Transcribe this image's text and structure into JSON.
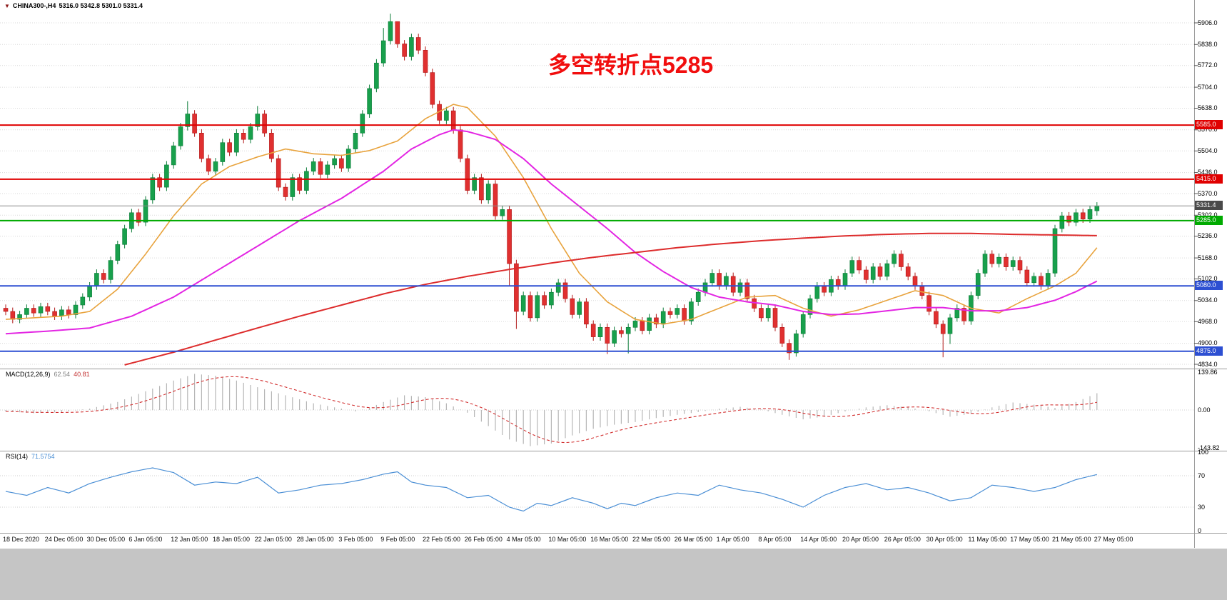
{
  "header": {
    "triangle": "▼",
    "symbol": "CHINA300-,H4",
    "ohlc": "5316.0 5342.8 5301.0 5331.4"
  },
  "annotation": {
    "text": "多空转折点5285",
    "color": "#f10e0e"
  },
  "chart_data": {
    "type": "candlestick",
    "symbol": "CHINA300-",
    "timeframe": "H4",
    "ohlc_display": "5316.0 5342.8 5301.0 5331.4",
    "y_axis": {
      "labels": [
        "5906.0",
        "5838.0",
        "5772.0",
        "5704.0",
        "5638.0",
        "5570.0",
        "5504.0",
        "5436.0",
        "5370.0",
        "5302.0",
        "5236.0",
        "5168.0",
        "5102.0",
        "5034.0",
        "4968.0",
        "4900.0",
        "4834.0"
      ]
    },
    "x_axis": {
      "labels": [
        "18 Dec 2020",
        "24 Dec 05:00",
        "30 Dec 05:00",
        "6 Jan 05:00",
        "12 Jan 05:00",
        "18 Jan 05:00",
        "22 Jan 05:00",
        "28 Jan 05:00",
        "3 Feb 05:00",
        "9 Feb 05:00",
        "22 Feb 05:00",
        "26 Feb 05:00",
        "4 Mar 05:00",
        "10 Mar 05:00",
        "16 Mar 05:00",
        "22 Mar 05:00",
        "26 Mar 05:00",
        "1 Apr 05:00",
        "8 Apr 05:00",
        "14 Apr 05:00",
        "20 Apr 05:00",
        "26 Apr 05:00",
        "30 Apr 05:00",
        "11 May 05:00",
        "17 May 05:00",
        "21 May 05:00",
        "27 May 05:00"
      ]
    },
    "candles": {
      "first_open": 5010,
      "wick": 12,
      "closes": [
        5000,
        4975,
        4990,
        5010,
        4995,
        5015,
        5000,
        4985,
        5005,
        4990,
        5020,
        5045,
        5080,
        5120,
        5100,
        5160,
        5210,
        5260,
        5310,
        5280,
        5350,
        5420,
        5390,
        5460,
        5520,
        5580,
        5620,
        5560,
        5480,
        5440,
        5470,
        5530,
        5500,
        5560,
        5540,
        5580,
        5620,
        5560,
        5480,
        5390,
        5360,
        5420,
        5380,
        5440,
        5470,
        5430,
        5460,
        5480,
        5450,
        5510,
        5560,
        5620,
        5700,
        5780,
        5850,
        5910,
        5840,
        5800,
        5860,
        5820,
        5750,
        5650,
        5600,
        5630,
        5570,
        5480,
        5380,
        5420,
        5350,
        5400,
        5300,
        5320,
        5150,
        5000,
        5050,
        4980,
        5050,
        5020,
        5060,
        5090,
        5040,
        4990,
        5030,
        4960,
        4920,
        4950,
        4900,
        4940,
        4930,
        4950,
        4970,
        4940,
        4980,
        4960,
        5000,
        4990,
        5010,
        4970,
        5030,
        5060,
        5090,
        5120,
        5080,
        5110,
        5060,
        5090,
        5040,
        5010,
        4980,
        5010,
        4950,
        4900,
        4870,
        4930,
        4990,
        5040,
        5080,
        5060,
        5100,
        5080,
        5120,
        5160,
        5130,
        5100,
        5140,
        5110,
        5150,
        5180,
        5140,
        5110,
        5080,
        5050,
        5000,
        4960,
        4930,
        4980,
        5010,
        4970,
        5050,
        5120,
        5180,
        5150,
        5170,
        5140,
        5160,
        5130,
        5090,
        5110,
        5080,
        5120,
        5260,
        5300,
        5280,
        5310,
        5290,
        5320,
        5331.4
      ],
      "high_overrides": {
        "26": 5660,
        "36": 5645,
        "54": 5890,
        "55": 5935,
        "56": 5900
      },
      "low_overrides": {
        "72": 5080,
        "73": 4945,
        "86": 4866,
        "89": 4868,
        "112": 4848,
        "113": 4858,
        "134": 4856,
        "135": 4898
      },
      "last_candle": {
        "o": 5316.0,
        "h": 5342.8,
        "l": 5301.0,
        "c": 5331.4
      }
    },
    "moving_averages": [
      {
        "name": "fast-ma",
        "color": "#e8a33d",
        "width": 1.6,
        "points": [
          [
            0,
            4975
          ],
          [
            8,
            4985
          ],
          [
            12,
            5000
          ],
          [
            16,
            5070
          ],
          [
            20,
            5180
          ],
          [
            24,
            5300
          ],
          [
            28,
            5400
          ],
          [
            32,
            5455
          ],
          [
            36,
            5485
          ],
          [
            40,
            5510
          ],
          [
            44,
            5495
          ],
          [
            48,
            5490
          ],
          [
            52,
            5505
          ],
          [
            56,
            5535
          ],
          [
            60,
            5605
          ],
          [
            64,
            5650
          ],
          [
            66,
            5640
          ],
          [
            70,
            5550
          ],
          [
            74,
            5420
          ],
          [
            78,
            5260
          ],
          [
            82,
            5120
          ],
          [
            86,
            5030
          ],
          [
            90,
            4975
          ],
          [
            94,
            4960
          ],
          [
            98,
            4975
          ],
          [
            102,
            5010
          ],
          [
            106,
            5045
          ],
          [
            110,
            5050
          ],
          [
            114,
            5010
          ],
          [
            118,
            4985
          ],
          [
            122,
            5005
          ],
          [
            126,
            5035
          ],
          [
            130,
            5065
          ],
          [
            134,
            5050
          ],
          [
            138,
            5010
          ],
          [
            142,
            4995
          ],
          [
            146,
            5040
          ],
          [
            150,
            5080
          ],
          [
            153,
            5120
          ],
          [
            156,
            5200
          ]
        ]
      },
      {
        "name": "mid-ma",
        "color": "#e326e3",
        "width": 2,
        "points": [
          [
            0,
            4930
          ],
          [
            6,
            4938
          ],
          [
            12,
            4948
          ],
          [
            18,
            4985
          ],
          [
            24,
            5045
          ],
          [
            30,
            5125
          ],
          [
            36,
            5205
          ],
          [
            42,
            5285
          ],
          [
            48,
            5355
          ],
          [
            54,
            5440
          ],
          [
            58,
            5510
          ],
          [
            62,
            5555
          ],
          [
            64,
            5570
          ],
          [
            66,
            5565
          ],
          [
            70,
            5540
          ],
          [
            74,
            5480
          ],
          [
            78,
            5400
          ],
          [
            82,
            5330
          ],
          [
            86,
            5260
          ],
          [
            90,
            5185
          ],
          [
            94,
            5125
          ],
          [
            98,
            5075
          ],
          [
            102,
            5045
          ],
          [
            106,
            5030
          ],
          [
            110,
            5020
          ],
          [
            114,
            5000
          ],
          [
            118,
            4990
          ],
          [
            122,
            4992
          ],
          [
            126,
            5002
          ],
          [
            130,
            5012
          ],
          [
            134,
            5012
          ],
          [
            138,
            5002
          ],
          [
            142,
            5002
          ],
          [
            146,
            5012
          ],
          [
            150,
            5035
          ],
          [
            153,
            5062
          ],
          [
            156,
            5095
          ]
        ]
      },
      {
        "name": "slow-ma",
        "color": "#dd2c2c",
        "width": 2,
        "points": [
          [
            17,
            4832
          ],
          [
            24,
            4872
          ],
          [
            30,
            4910
          ],
          [
            36,
            4948
          ],
          [
            42,
            4985
          ],
          [
            48,
            5020
          ],
          [
            54,
            5055
          ],
          [
            60,
            5085
          ],
          [
            66,
            5110
          ],
          [
            72,
            5132
          ],
          [
            78,
            5152
          ],
          [
            84,
            5170
          ],
          [
            90,
            5185
          ],
          [
            96,
            5200
          ],
          [
            102,
            5212
          ],
          [
            108,
            5222
          ],
          [
            114,
            5230
          ],
          [
            120,
            5237
          ],
          [
            126,
            5242
          ],
          [
            132,
            5245
          ],
          [
            138,
            5245
          ],
          [
            144,
            5242
          ],
          [
            150,
            5240
          ],
          [
            156,
            5238
          ]
        ]
      }
    ],
    "levels": [
      {
        "price": 5585,
        "label": "5585.0",
        "color": "#e00000"
      },
      {
        "price": 5415,
        "label": "5415.0",
        "color": "#e00000"
      },
      {
        "price": 5285,
        "label": "5285.0",
        "color": "#00aa00"
      },
      {
        "price": 5080,
        "label": "5080.0",
        "color": "#2d4fd2"
      },
      {
        "price": 4875,
        "label": "4875.0",
        "color": "#2d4fd2"
      }
    ],
    "current_price": {
      "price": 5331.4,
      "label": "5331.4",
      "tag_bg": "#4a4a4a"
    },
    "macd": {
      "label_text": "MACD(12,26,9)",
      "main_value_text": "62.54",
      "signal_value_text": "40.81",
      "axis_labels": [
        "139.86",
        "0.00",
        "-143.82"
      ],
      "histogram_points": [
        [
          0,
          -5
        ],
        [
          4,
          -12
        ],
        [
          8,
          -8
        ],
        [
          12,
          5
        ],
        [
          16,
          30
        ],
        [
          20,
          70
        ],
        [
          24,
          110
        ],
        [
          27,
          135
        ],
        [
          30,
          128
        ],
        [
          33,
          110
        ],
        [
          36,
          85
        ],
        [
          40,
          55
        ],
        [
          44,
          25
        ],
        [
          48,
          5
        ],
        [
          50,
          -5
        ],
        [
          52,
          8
        ],
        [
          54,
          30
        ],
        [
          57,
          55
        ],
        [
          60,
          48
        ],
        [
          63,
          25
        ],
        [
          66,
          -10
        ],
        [
          69,
          -60
        ],
        [
          72,
          -110
        ],
        [
          75,
          -135
        ],
        [
          78,
          -125
        ],
        [
          81,
          -95
        ],
        [
          84,
          -70
        ],
        [
          87,
          -55
        ],
        [
          90,
          -45
        ],
        [
          93,
          -30
        ],
        [
          96,
          -18
        ],
        [
          99,
          -8
        ],
        [
          102,
          5
        ],
        [
          105,
          12
        ],
        [
          108,
          2
        ],
        [
          111,
          -18
        ],
        [
          114,
          -35
        ],
        [
          117,
          -25
        ],
        [
          120,
          -5
        ],
        [
          123,
          10
        ],
        [
          126,
          18
        ],
        [
          129,
          10
        ],
        [
          132,
          -5
        ],
        [
          135,
          -25
        ],
        [
          138,
          -15
        ],
        [
          141,
          10
        ],
        [
          144,
          28
        ],
        [
          147,
          20
        ],
        [
          150,
          8
        ],
        [
          153,
          30
        ],
        [
          156,
          62.54
        ]
      ]
    },
    "rsi": {
      "label_text": "RSI(14)",
      "value_text": "71.5754",
      "axis_labels": [
        "100",
        "70",
        "30",
        "0"
      ],
      "level_lines": [
        70,
        30
      ],
      "points": [
        [
          0,
          50
        ],
        [
          3,
          45
        ],
        [
          6,
          55
        ],
        [
          9,
          48
        ],
        [
          12,
          60
        ],
        [
          15,
          68
        ],
        [
          18,
          75
        ],
        [
          21,
          80
        ],
        [
          24,
          74
        ],
        [
          27,
          58
        ],
        [
          30,
          62
        ],
        [
          33,
          60
        ],
        [
          36,
          68
        ],
        [
          39,
          48
        ],
        [
          42,
          52
        ],
        [
          45,
          58
        ],
        [
          48,
          60
        ],
        [
          51,
          65
        ],
        [
          54,
          72
        ],
        [
          56,
          75
        ],
        [
          58,
          62
        ],
        [
          60,
          58
        ],
        [
          63,
          55
        ],
        [
          66,
          42
        ],
        [
          69,
          45
        ],
        [
          72,
          30
        ],
        [
          74,
          25
        ],
        [
          76,
          35
        ],
        [
          78,
          32
        ],
        [
          81,
          42
        ],
        [
          84,
          35
        ],
        [
          86,
          28
        ],
        [
          88,
          35
        ],
        [
          90,
          32
        ],
        [
          93,
          42
        ],
        [
          96,
          48
        ],
        [
          99,
          45
        ],
        [
          102,
          58
        ],
        [
          105,
          52
        ],
        [
          108,
          48
        ],
        [
          111,
          40
        ],
        [
          114,
          30
        ],
        [
          117,
          45
        ],
        [
          120,
          55
        ],
        [
          123,
          60
        ],
        [
          126,
          52
        ],
        [
          129,
          55
        ],
        [
          132,
          48
        ],
        [
          135,
          38
        ],
        [
          138,
          42
        ],
        [
          141,
          58
        ],
        [
          144,
          55
        ],
        [
          147,
          50
        ],
        [
          150,
          55
        ],
        [
          153,
          65
        ],
        [
          156,
          71.58
        ]
      ]
    }
  }
}
